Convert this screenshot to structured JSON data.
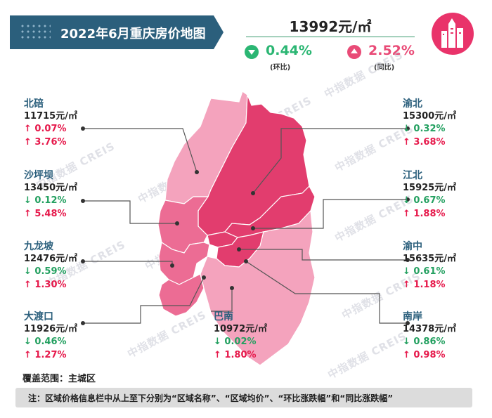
{
  "title": "2022年6月重庆房价地图",
  "summary": {
    "avg_price": "13992元/㎡",
    "mom": {
      "value": "0.44%",
      "label": "(环比)",
      "direction": "down",
      "color": "#2bb673"
    },
    "yoy": {
      "value": "2.52%",
      "label": "(同比)",
      "direction": "up",
      "color": "#e94b77"
    }
  },
  "watermark": "中指数据 CREIS",
  "districts": [
    {
      "name": "北碚",
      "price": "11715元/㎡",
      "mom": "↑ 0.07%",
      "mom_dir": "up",
      "yoy": "↑ 3.76%",
      "yoy_dir": "up"
    },
    {
      "name": "沙坪坝",
      "price": "13450元/㎡",
      "mom": "↓ 0.12%",
      "mom_dir": "down",
      "yoy": "↑ 5.48%",
      "yoy_dir": "up"
    },
    {
      "name": "九龙坡",
      "price": "12476元/㎡",
      "mom": "↓ 0.59%",
      "mom_dir": "down",
      "yoy": "↑ 1.30%",
      "yoy_dir": "up"
    },
    {
      "name": "大渡口",
      "price": "11926元/㎡",
      "mom": "↓ 0.46%",
      "mom_dir": "down",
      "yoy": "↑ 1.27%",
      "yoy_dir": "up"
    },
    {
      "name": "巴南",
      "price": "10972元/㎡",
      "mom": "↓ 0.02%",
      "mom_dir": "down",
      "yoy": "↑ 1.80%",
      "yoy_dir": "up"
    },
    {
      "name": "渝北",
      "price": "15300元/㎡",
      "mom": "↓ 0.32%",
      "mom_dir": "down",
      "yoy": "↑ 3.68%",
      "yoy_dir": "up"
    },
    {
      "name": "江北",
      "price": "15925元/㎡",
      "mom": "↓ 0.67%",
      "mom_dir": "down",
      "yoy": "↑ 1.88%",
      "yoy_dir": "up"
    },
    {
      "name": "渝中",
      "price": "15635元/㎡",
      "mom": "↓ 0.61%",
      "mom_dir": "down",
      "yoy": "↑ 1.18%",
      "yoy_dir": "up"
    },
    {
      "name": "南岸",
      "price": "14378元/㎡",
      "mom": "↓ 0.86%",
      "mom_dir": "down",
      "yoy": "↑ 0.98%",
      "yoy_dir": "up"
    }
  ],
  "colors": {
    "up": "#e6194b",
    "down": "#23a060",
    "name": "#2b5f7c",
    "banner": "#2b5f7c",
    "map_light": "#f4a3bd",
    "map_mid": "#ec6c94",
    "map_dark": "#e23d6e"
  },
  "coverage": "覆盖范围：主城区",
  "note": "注：区域价格信息栏中从上至下分别为“区域名称”、“区域均价”、“环比涨跌幅”和“同比涨跌幅”"
}
